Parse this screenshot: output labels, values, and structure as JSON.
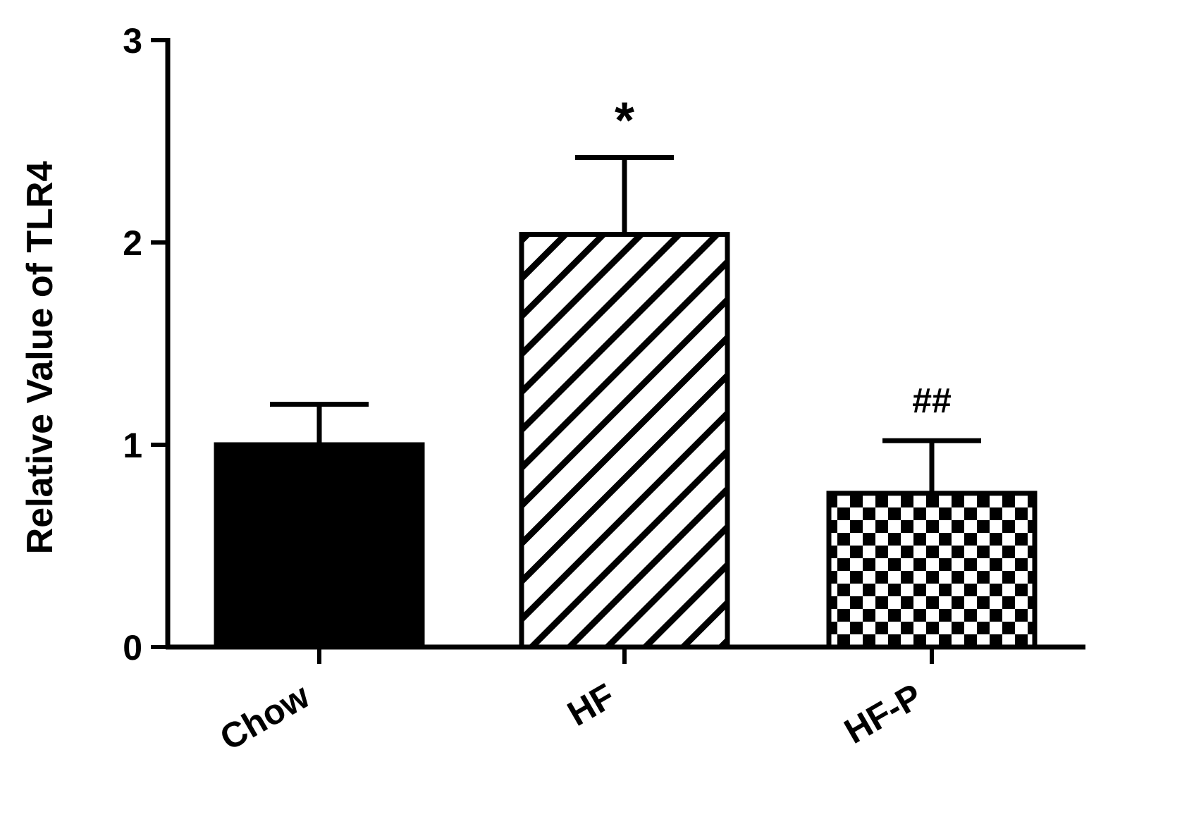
{
  "chart_data": {
    "type": "bar",
    "title": "",
    "xlabel": "",
    "ylabel": "Relative Value of TLR4",
    "ylim": [
      0,
      3
    ],
    "yticks": [
      "0",
      "1",
      "2",
      "3"
    ],
    "categories": [
      "Chow",
      "HF",
      "HF-P"
    ],
    "values": [
      1.0,
      2.04,
      0.76
    ],
    "error_upper": [
      1.2,
      2.42,
      1.02
    ],
    "patterns": [
      "solid",
      "diagonal-stripes",
      "checkerboard"
    ],
    "annotations": [
      "",
      "*",
      "##"
    ],
    "grid": false,
    "legend": "none"
  },
  "colors": {
    "ink": "#000000",
    "background": "#ffffff"
  }
}
